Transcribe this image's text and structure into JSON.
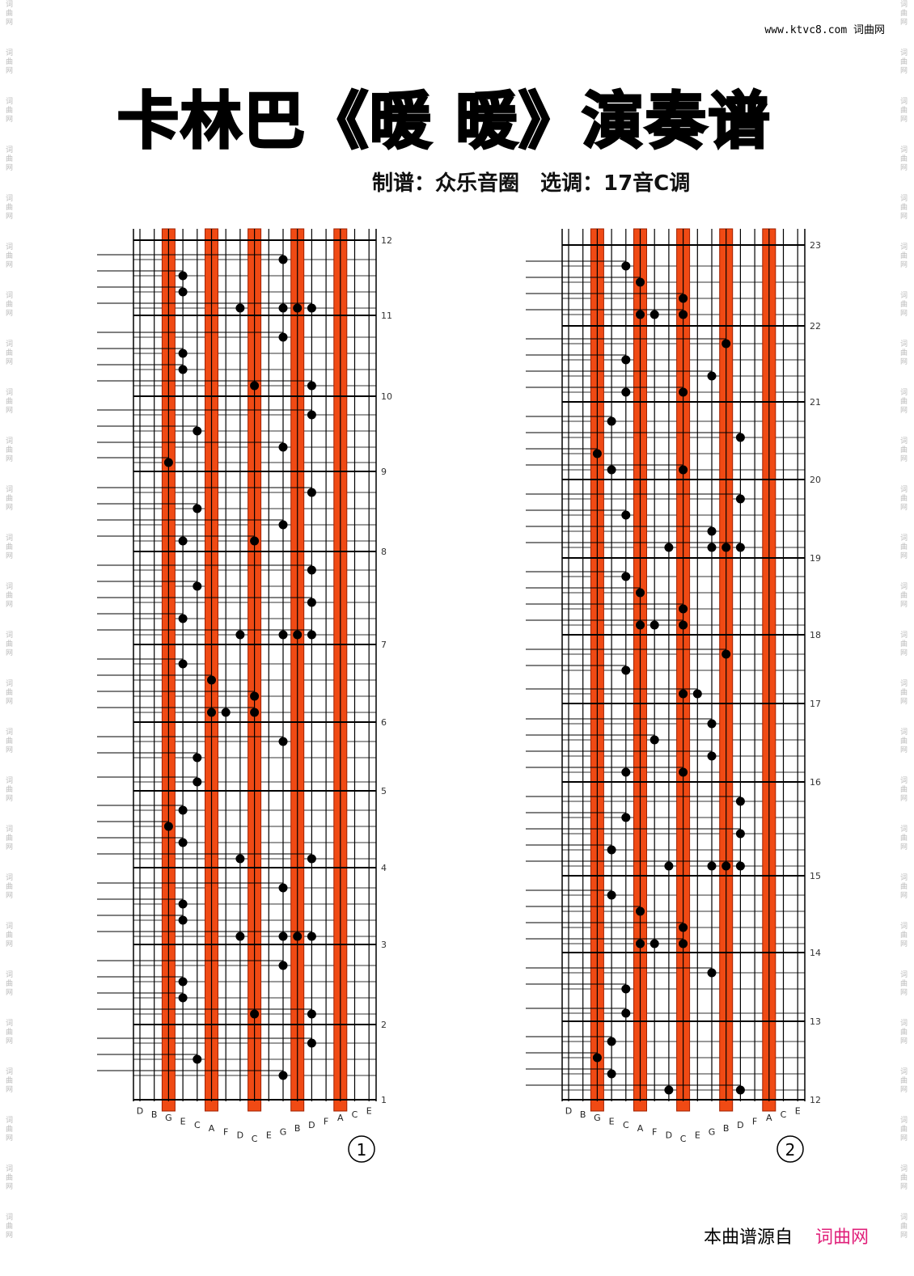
{
  "header": {
    "site": "www.ktvc8.com 词曲网"
  },
  "watermark": "词曲网",
  "title": "卡林巴《暖 暖》演奏谱",
  "subtitle": "制谱：众乐音圈　选调：17音C调",
  "keys": [
    "D",
    "B",
    "G",
    "E",
    "C",
    "A",
    "F",
    "D",
    "C",
    "E",
    "G",
    "B",
    "D",
    "F",
    "A",
    "C",
    "E"
  ],
  "panels": [
    {
      "number": 1,
      "measures": [
        12,
        11,
        10,
        9,
        8,
        7,
        6,
        5,
        4,
        3,
        2,
        1
      ]
    },
    {
      "number": 2,
      "measures": [
        23,
        22,
        21,
        20,
        19,
        18,
        17,
        16,
        15,
        14,
        13,
        12
      ]
    }
  ],
  "footer": {
    "source": "本曲谱源自",
    "site": "词曲网"
  }
}
